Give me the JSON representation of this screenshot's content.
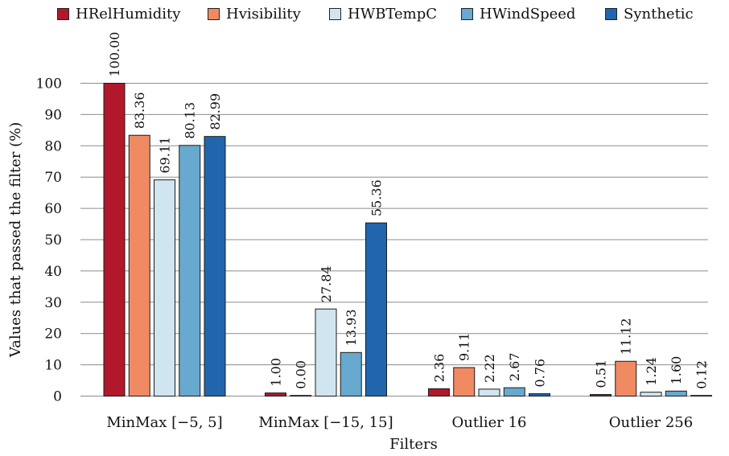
{
  "chart_data": {
    "type": "bar",
    "xlabel": "Filters",
    "ylabel": "Values that passed the filter (%)",
    "ylim": [
      0,
      100
    ],
    "yticks": [
      "0",
      "10",
      "20",
      "30",
      "40",
      "50",
      "60",
      "70",
      "80",
      "90",
      "100"
    ],
    "grid": "horizontal",
    "legend_position": "top",
    "categories": [
      "MinMax [−5, 5]",
      "MinMax [−15, 15]",
      "Outlier 16",
      "Outlier 256"
    ],
    "series": [
      {
        "name": "HRelHumidity",
        "color": "#b2182b",
        "values": [
          100.0,
          1.0,
          2.36,
          0.51
        ],
        "labels": [
          "100.00",
          "1.00",
          "2.36",
          "0.51"
        ]
      },
      {
        "name": "Hvisibility",
        "color": "#ef8a62",
        "values": [
          83.36,
          0.0,
          9.11,
          11.12
        ],
        "labels": [
          "83.36",
          "0.00",
          "9.11",
          "11.12"
        ]
      },
      {
        "name": "HWBTempC",
        "color": "#d1e5f0",
        "values": [
          69.11,
          27.84,
          2.22,
          1.24
        ],
        "labels": [
          "69.11",
          "27.84",
          "2.22",
          "1.24"
        ]
      },
      {
        "name": "HWindSpeed",
        "color": "#67a9cf",
        "values": [
          80.13,
          13.93,
          2.67,
          1.6
        ],
        "labels": [
          "80.13",
          "13.93",
          "2.67",
          "1.60"
        ]
      },
      {
        "name": "Synthetic",
        "color": "#2166ac",
        "values": [
          82.99,
          55.36,
          0.76,
          0.12
        ],
        "labels": [
          "82.99",
          "55.36",
          "0.76",
          "0.12"
        ]
      }
    ]
  }
}
